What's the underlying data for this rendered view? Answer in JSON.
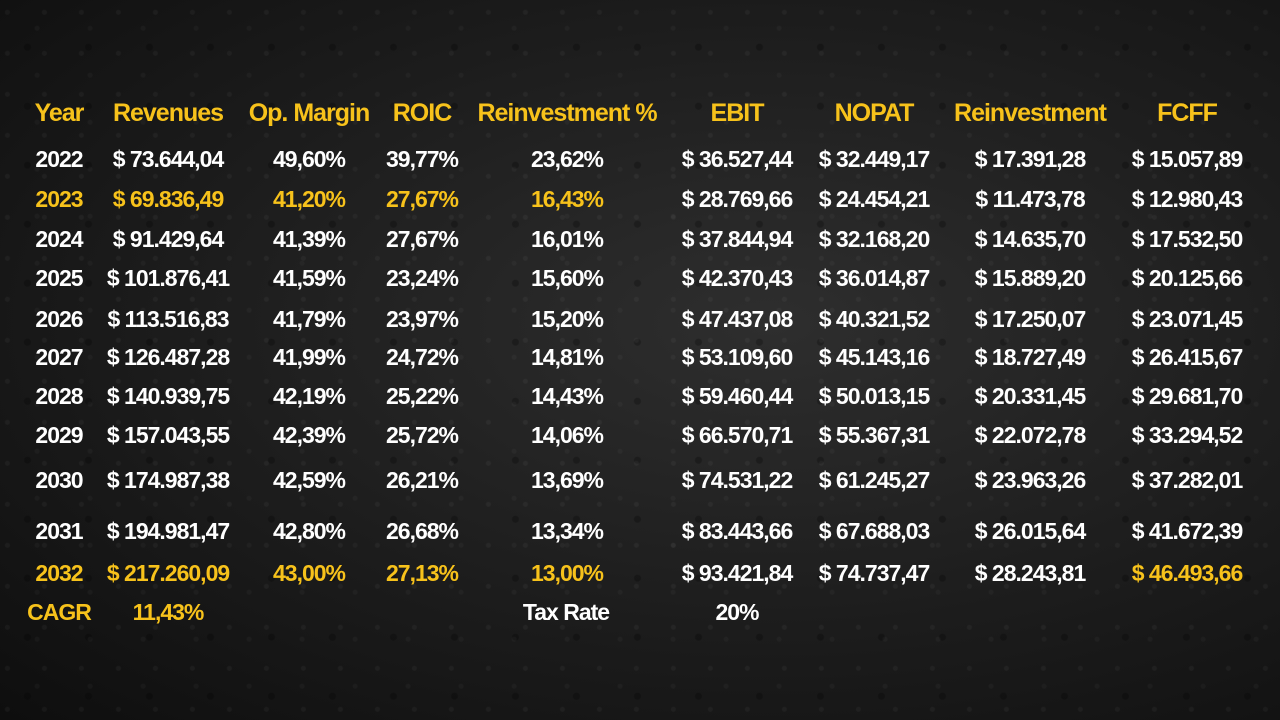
{
  "colors": {
    "accent": "#f7c21b",
    "text": "#ffffff"
  },
  "table": {
    "headers": [
      "Year",
      "Revenues",
      "Op. Margin",
      "ROIC",
      "Reinvestment %",
      "EBIT",
      "NOPAT",
      "Reinvestment",
      "FCFF"
    ],
    "rows": [
      [
        "2022",
        "$ 73.644,04",
        "49,60%",
        "39,77%",
        "23,62%",
        "$ 36.527,44",
        "$ 32.449,17",
        "$ 17.391,28",
        "$ 15.057,89"
      ],
      [
        "2023",
        "$ 69.836,49",
        "41,20%",
        "27,67%",
        "16,43%",
        "$ 28.769,66",
        "$ 24.454,21",
        "$ 11.473,78",
        "$ 12.980,43"
      ],
      [
        "2024",
        "$ 91.429,64",
        "41,39%",
        "27,67%",
        "16,01%",
        "$ 37.844,94",
        "$ 32.168,20",
        "$ 14.635,70",
        "$ 17.532,50"
      ],
      [
        "2025",
        "$ 101.876,41",
        "41,59%",
        "23,24%",
        "15,60%",
        "$ 42.370,43",
        "$ 36.014,87",
        "$ 15.889,20",
        "$ 20.125,66"
      ],
      [
        "2026",
        "$ 113.516,83",
        "41,79%",
        "23,97%",
        "15,20%",
        "$ 47.437,08",
        "$ 40.321,52",
        "$ 17.250,07",
        "$ 23.071,45"
      ],
      [
        "2027",
        "$ 126.487,28",
        "41,99%",
        "24,72%",
        "14,81%",
        "$ 53.109,60",
        "$ 45.143,16",
        "$ 18.727,49",
        "$ 26.415,67"
      ],
      [
        "2028",
        "$ 140.939,75",
        "42,19%",
        "25,22%",
        "14,43%",
        "$ 59.460,44",
        "$ 50.013,15",
        "$ 20.331,45",
        "$ 29.681,70"
      ],
      [
        "2029",
        "$ 157.043,55",
        "42,39%",
        "25,72%",
        "14,06%",
        "$ 66.570,71",
        "$ 55.367,31",
        "$ 22.072,78",
        "$ 33.294,52"
      ],
      [
        "2030",
        "$ 174.987,38",
        "42,59%",
        "26,21%",
        "13,69%",
        "$ 74.531,22",
        "$ 61.245,27",
        "$ 23.963,26",
        "$ 37.282,01"
      ],
      [
        "2031",
        "$ 194.981,47",
        "42,80%",
        "26,68%",
        "13,34%",
        "$ 83.443,66",
        "$ 67.688,03",
        "$ 26.015,64",
        "$ 41.672,39"
      ],
      [
        "2032",
        "$ 217.260,09",
        "43,00%",
        "27,13%",
        "13,00%",
        "$ 93.421,84",
        "$ 74.737,47",
        "$ 28.243,81",
        "$ 46.493,66"
      ]
    ]
  },
  "footer": {
    "cagr_label": "CAGR",
    "cagr_value": "11,43%",
    "tax_rate_label": "Tax Rate",
    "tax_rate_value": "20%"
  }
}
